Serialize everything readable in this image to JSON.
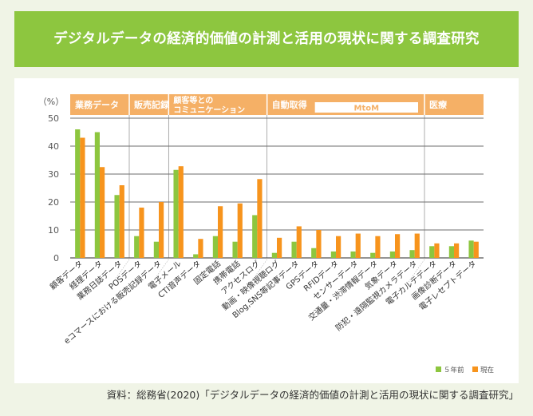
{
  "header": {
    "title": "デジタルデータの経済的価値の計測と活用の現状に関する調査研究"
  },
  "source_note": "資料：総務省(2020)「デジタルデータの経済的価値の計測と活用の現状に関する調査研究」",
  "colors": {
    "banner": "#8dc63f",
    "series_5y": "#8dc63f",
    "series_now": "#f7941d",
    "group_band": "#f5b066",
    "background": "#f0f4e6"
  },
  "chart_data": {
    "type": "bar",
    "unit_label": "（%）",
    "ylim": [
      0,
      50
    ],
    "yticks": [
      0,
      10,
      20,
      30,
      40,
      50
    ],
    "grid": true,
    "legend_position": "bottom-right",
    "groups": [
      {
        "label": "業務データ",
        "count": 3
      },
      {
        "label": "販売記録",
        "count": 2
      },
      {
        "label": "顧客等との\nコミュニケーション",
        "count": 5
      },
      {
        "label": "自動取得",
        "count": 8
      },
      {
        "label": "医療",
        "count": 3
      }
    ],
    "subgroup_label": "MtoM",
    "categories": [
      "顧客データ",
      "経理データ",
      "業務日誌データ",
      "POSデータ",
      "eコマースにおける販売記録データ",
      "電子メール",
      "CTI音声データ",
      "固定電話",
      "携帯電話",
      "アクセスログ",
      "動画・映像視聴ログ",
      "Blog,SNS等記事データ",
      "GPSデータ",
      "RFIDデータ",
      "センサーデータ",
      "交通量・渋滞情報データ",
      "気象データ",
      "防犯・遠隔監視カメラデータ",
      "電子カルテデータ",
      "画像診断データ",
      "電子レセプトデータ"
    ],
    "series": [
      {
        "name": "５年前",
        "values": [
          46,
          45,
          22.5,
          7.8,
          5.8,
          31.5,
          1.3,
          7.8,
          5.8,
          15.3,
          1.8,
          5.8,
          3.5,
          2.3,
          2.3,
          1.8,
          2.3,
          2.8,
          4.2,
          4.2,
          6.2
        ]
      },
      {
        "name": "現在",
        "values": [
          43,
          32.5,
          26,
          18,
          20,
          32.8,
          6.8,
          18.5,
          19.5,
          28.2,
          7.2,
          11.3,
          10,
          7.8,
          8.7,
          7.8,
          8.5,
          8.7,
          5.2,
          5.2,
          5.8
        ]
      }
    ]
  }
}
